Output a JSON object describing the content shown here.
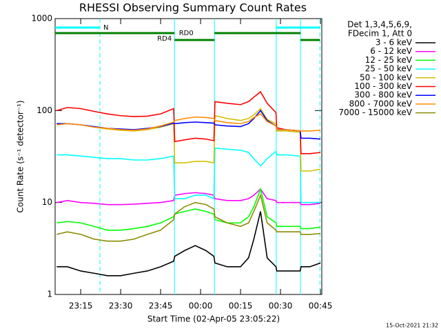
{
  "chart_data": {
    "type": "line",
    "title": "RHESSI Observing Summary Count Rates",
    "xlabel": "Start Time (02-Apr-05 23:05:22)",
    "ylabel": "Count Rate (s⁻¹ detector⁻¹)",
    "legend_header": [
      "Det 1,3,4,5,6,9,",
      "FDecim 1, Att 0"
    ],
    "footer": "15-Oct-2021 21:32",
    "log_y": true,
    "xlim": [
      1385.4,
      1485.5
    ],
    "xticks": [
      {
        "value": 1395,
        "label": "23:15"
      },
      {
        "value": 1410,
        "label": "23:30"
      },
      {
        "value": 1425,
        "label": "23:45"
      },
      {
        "value": 1440,
        "label": "00:00"
      },
      {
        "value": 1455,
        "label": "00:15"
      },
      {
        "value": 1470,
        "label": "00:30"
      },
      {
        "value": 1485,
        "label": "00:45"
      }
    ],
    "ylim": [
      1,
      1000
    ],
    "yticks": [
      1,
      10,
      100,
      1000
    ],
    "markers": [
      {
        "value": 1402.2,
        "style": "dashed"
      },
      {
        "value": 1430.2,
        "style": "solid"
      },
      {
        "value": 1445.2,
        "style": "solid"
      },
      {
        "value": 1468.4,
        "style": "solid"
      },
      {
        "value": 1477.5,
        "style": "solid"
      },
      {
        "value": 1484.8,
        "style": "dashed"
      }
    ],
    "marker_color": "#00ffff",
    "flags": [
      {
        "label": "N",
        "color": "#00ffff",
        "intervals": [
          [
            1385.4,
            1402.2
          ],
          [
            1468.4,
            1484.8
          ]
        ]
      },
      {
        "label": "RD0",
        "color": "#008000",
        "intervals": [
          [
            1385.4,
            1430.2
          ],
          [
            1445.2,
            1477.5
          ]
        ]
      },
      {
        "label": "RD4",
        "color": "#008000",
        "intervals": [
          [
            1430.2,
            1445.2
          ],
          [
            1477.5,
            1484.8
          ]
        ]
      }
    ],
    "x": [
      1386,
      1390,
      1395,
      1400,
      1405,
      1410,
      1415,
      1420,
      1425,
      1429.9,
      1430.3,
      1434,
      1438,
      1442,
      1445,
      1445.4,
      1450,
      1455,
      1458,
      1460,
      1462.5,
      1465,
      1468.3,
      1468.6,
      1472,
      1477.4,
      1477.7,
      1481,
      1485
    ],
    "series": [
      {
        "name": "3 - 6 keV",
        "color": "#000000",
        "values": [
          2,
          2,
          1.8,
          1.7,
          1.6,
          1.6,
          1.7,
          1.8,
          2,
          2.3,
          2.6,
          3,
          3.4,
          3,
          2.6,
          2.2,
          2,
          2,
          2.5,
          4,
          8,
          2.5,
          2,
          1.8,
          1.8,
          1.8,
          2,
          2,
          2.2
        ]
      },
      {
        "name": "6 - 12 keV",
        "color": "#ff00ff",
        "values": [
          10,
          10.5,
          10,
          9.8,
          9.5,
          9.5,
          9.6,
          9.8,
          10,
          10.5,
          12,
          12.5,
          12.8,
          12.5,
          12,
          11,
          10.5,
          10.5,
          11,
          12,
          14,
          11,
          10.5,
          10,
          10,
          10,
          9.5,
          9.5,
          9.8
        ]
      },
      {
        "name": "12 - 25 keV",
        "color": "#00ff00",
        "values": [
          6,
          6.2,
          6,
          5.5,
          5,
          5,
          5.2,
          5.5,
          6,
          7,
          7.5,
          8,
          8.5,
          8,
          7.5,
          6.5,
          6,
          6,
          7,
          9,
          14,
          7,
          6,
          5.5,
          5.5,
          5.5,
          5.2,
          5.2,
          5.4
        ]
      },
      {
        "name": "25 - 50 keV",
        "color": "#00ffff",
        "values": [
          33,
          33,
          32,
          31,
          30,
          30,
          29,
          29,
          30,
          32,
          11,
          11,
          12,
          12,
          11,
          39,
          38,
          37,
          35,
          30,
          25,
          30,
          36,
          33,
          33,
          32,
          10,
          10,
          10
        ]
      },
      {
        "name": "50 - 100 keV",
        "color": "#d4c000",
        "values": [
          70,
          72,
          70,
          66,
          63,
          61,
          60,
          62,
          66,
          72,
          27,
          27,
          28,
          28,
          27,
          88,
          82,
          78,
          82,
          90,
          105,
          80,
          72,
          60,
          60,
          58,
          22,
          22,
          23
        ]
      },
      {
        "name": "100 - 300 keV",
        "color": "#ff0000",
        "values": [
          100,
          108,
          105,
          98,
          92,
          88,
          86,
          87,
          92,
          105,
          46,
          48,
          50,
          49,
          47,
          125,
          120,
          116,
          125,
          140,
          160,
          120,
          95,
          65,
          62,
          60,
          34,
          34,
          35
        ]
      },
      {
        "name": "300 - 800 keV",
        "color": "#0000ff",
        "values": [
          72,
          72,
          70,
          67,
          64,
          63,
          62,
          64,
          67,
          73,
          72,
          74,
          75,
          74,
          73,
          70,
          68,
          67,
          72,
          82,
          100,
          78,
          68,
          62,
          62,
          60,
          50,
          50,
          49
        ]
      },
      {
        "name": "800 - 7000 keV",
        "color": "#ff8c00",
        "values": [
          70,
          72,
          70,
          66,
          64,
          62,
          61,
          63,
          68,
          75,
          78,
          82,
          85,
          84,
          82,
          78,
          74,
          72,
          76,
          84,
          92,
          76,
          68,
          62,
          62,
          60,
          60,
          60,
          61
        ]
      },
      {
        "name": "7000 - 15000 keV",
        "color": "#8b8b00",
        "values": [
          4.5,
          4.8,
          4.5,
          4,
          3.8,
          3.8,
          4,
          4.5,
          5,
          6.5,
          7.5,
          9,
          10,
          9.5,
          8.5,
          7,
          6,
          5.5,
          6,
          8,
          12,
          6,
          5,
          4.8,
          4.8,
          4.8,
          4.5,
          4.5,
          4.6
        ]
      }
    ]
  }
}
